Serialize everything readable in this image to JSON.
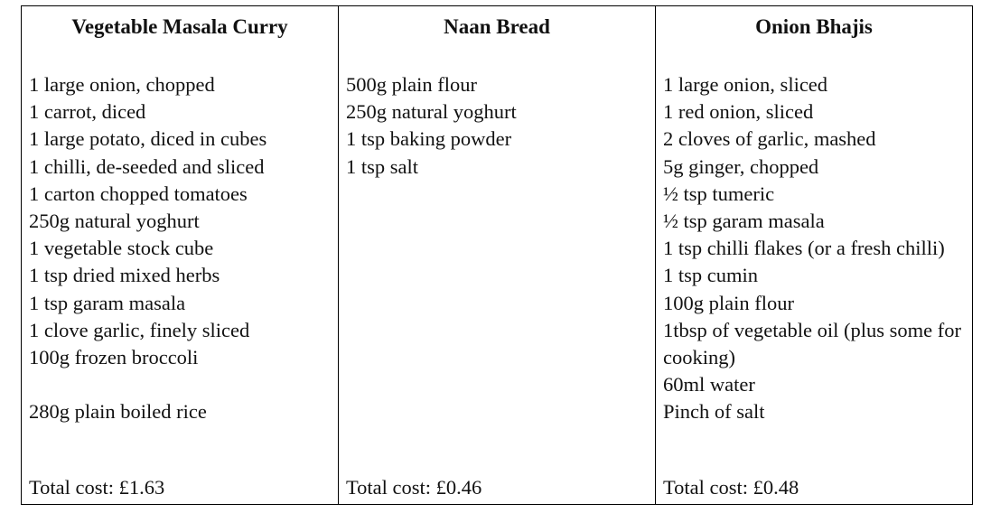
{
  "columns": [
    {
      "title": "Vegetable Masala Curry",
      "lines": [
        "1 large onion, chopped",
        "1 carrot, diced",
        "1 large potato, diced in cubes",
        "1 chilli, de-seeded and sliced",
        "1 carton chopped tomatoes",
        "250g natural yoghurt",
        "1 vegetable stock cube",
        "1 tsp dried mixed herbs",
        "1 tsp garam masala",
        "1 clove garlic, finely sliced",
        "100g frozen broccoli",
        "",
        "280g plain boiled rice"
      ],
      "total": "Total cost: £1.63"
    },
    {
      "title": "Naan Bread",
      "lines": [
        "500g plain flour",
        "250g natural yoghurt",
        "1 tsp baking powder",
        "1 tsp salt"
      ],
      "total": "Total cost: £0.46"
    },
    {
      "title": "Onion Bhajis",
      "lines": [
        "1 large onion, sliced",
        "1 red onion, sliced",
        "2 cloves of garlic, mashed",
        "5g ginger, chopped",
        "½ tsp tumeric",
        "½ tsp garam masala",
        "1 tsp chilli flakes (or a fresh chilli)",
        "1 tsp cumin",
        "100g plain flour",
        "1tbsp of vegetable oil (plus some for cooking)",
        "60ml water",
        "Pinch of salt"
      ],
      "total": "Total cost: £0.48"
    }
  ]
}
